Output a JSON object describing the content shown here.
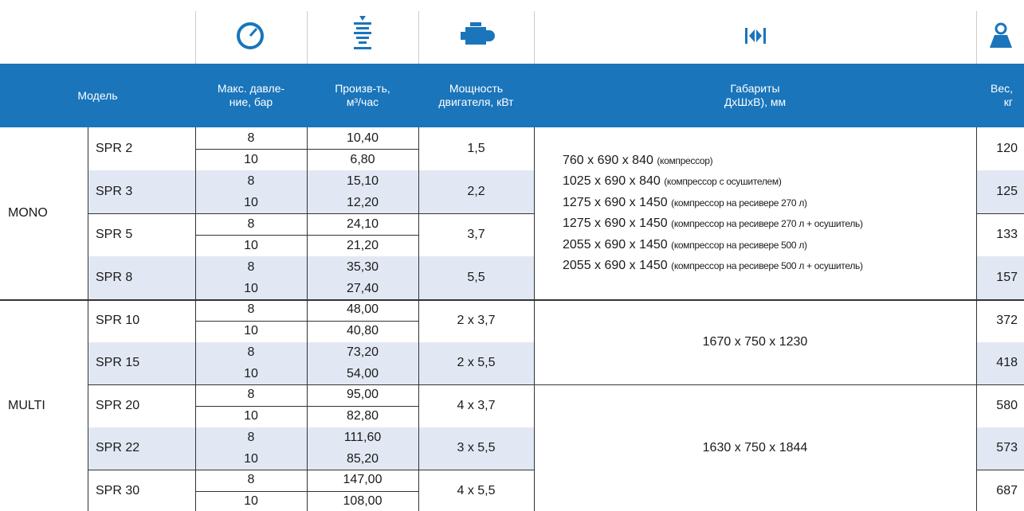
{
  "headers": [
    [
      "Модель"
    ],
    [
      "Макс. давле-",
      "ние, бар"
    ],
    [
      "Произв-ть,",
      "м³/час"
    ],
    [
      "Мощность",
      "двигателя, кВт"
    ],
    [
      "Габариты",
      "ДхШхВ), мм"
    ],
    [
      "Вес,",
      "кг"
    ]
  ],
  "groups": [
    {
      "name": "MONO",
      "models": [
        {
          "name": "SPR 2",
          "rows": [
            {
              "pressure": "8",
              "capacity": "10,40"
            },
            {
              "pressure": "10",
              "capacity": "6,80"
            }
          ],
          "power": "1,5",
          "weight": "120",
          "dimensions": [
            {
              "size": "760 x 690 x 840",
              "note": "(компрессор)"
            },
            {
              "size": "1025 x 690 x 840",
              "note": "(компрессор с осушителем)"
            },
            {
              "size": "1275 x 690 x 1450",
              "note": "(компрессор на ресивере 270 л)"
            },
            {
              "size": "1275 x 690 x 1450",
              "note": "(компрессор на ресивере 270 л + осушитель)"
            },
            {
              "size": "2055 x 690 x 1450",
              "note": "(компрессор на ресивере 500 л)"
            },
            {
              "size": "2055 x 690 x 1450",
              "note": "(компрессор на ресивере 500 л + осушитель)"
            }
          ]
        },
        {
          "name": "SPR 3",
          "rows": [
            {
              "pressure": "8",
              "capacity": "15,10"
            },
            {
              "pressure": "10",
              "capacity": "12,20"
            }
          ],
          "power": "2,2",
          "weight": "125"
        },
        {
          "name": "SPR 5",
          "rows": [
            {
              "pressure": "8",
              "capacity": "24,10"
            },
            {
              "pressure": "10",
              "capacity": "21,20"
            }
          ],
          "power": "3,7",
          "weight": "133"
        },
        {
          "name": "SPR 8",
          "rows": [
            {
              "pressure": "8",
              "capacity": "35,30"
            },
            {
              "pressure": "10",
              "capacity": "27,40"
            }
          ],
          "power": "5,5",
          "weight": "157"
        }
      ]
    },
    {
      "name": "MULTI",
      "models": [
        {
          "name": "SPR 10",
          "rows": [
            {
              "pressure": "8",
              "capacity": "48,00"
            },
            {
              "pressure": "10",
              "capacity": "40,80"
            }
          ],
          "power": "2 x 3,7",
          "weight": "372",
          "dimensions": [
            {
              "size": "1670 x 750 x 1230"
            }
          ]
        },
        {
          "name": "SPR 15",
          "rows": [
            {
              "pressure": "8",
              "capacity": "73,20"
            },
            {
              "pressure": "10",
              "capacity": "54,00"
            }
          ],
          "power": "2 x 5,5",
          "weight": "418"
        },
        {
          "name": "SPR 20",
          "rows": [
            {
              "pressure": "8",
              "capacity": "95,00"
            },
            {
              "pressure": "10",
              "capacity": "82,80"
            }
          ],
          "power": "4 x 3,7",
          "weight": "580",
          "dimensions": [
            {
              "size": "1630 x 750 x 1844"
            }
          ]
        },
        {
          "name": "SPR 22",
          "rows": [
            {
              "pressure": "8",
              "capacity": "111,60"
            },
            {
              "pressure": "10",
              "capacity": "85,20"
            }
          ],
          "power": "3 x 5,5",
          "weight": "573"
        },
        {
          "name": "SPR 30",
          "rows": [
            {
              "pressure": "8",
              "capacity": "147,00"
            },
            {
              "pressure": "10",
              "capacity": "108,00"
            }
          ],
          "power": "4 x 5,5",
          "weight": "687"
        }
      ]
    }
  ]
}
